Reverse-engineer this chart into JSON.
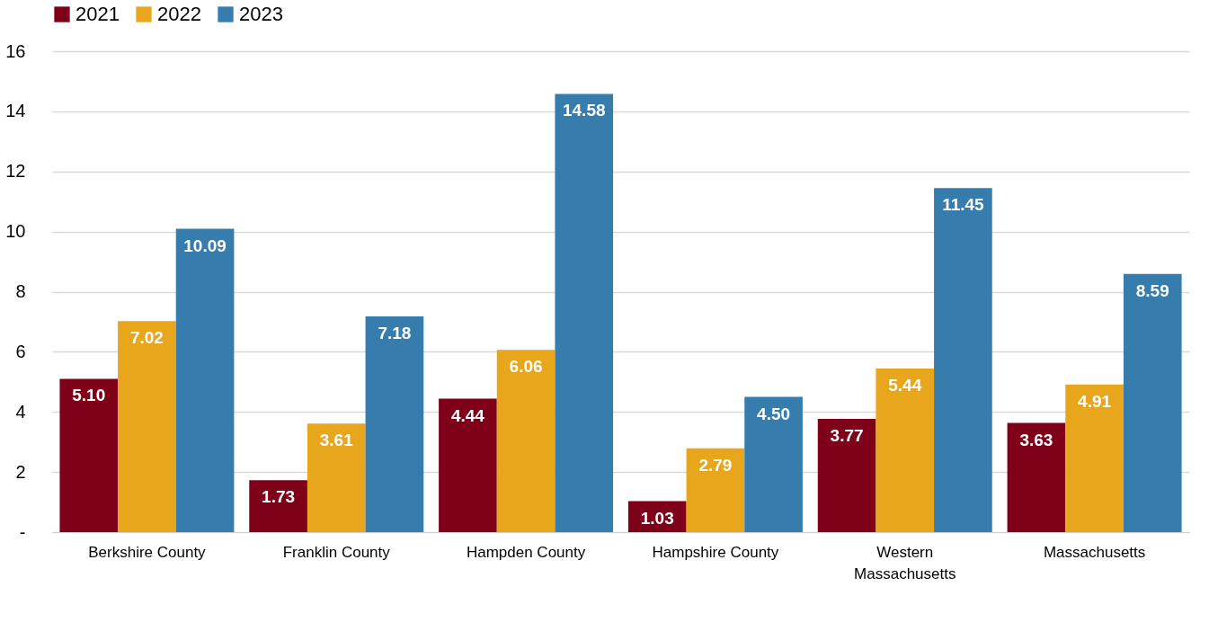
{
  "chart_data": {
    "type": "bar",
    "categories": [
      "Berkshire County",
      "Franklin County",
      "Hampden County",
      "Hampshire County",
      "Western Massachusetts",
      "Massachusetts"
    ],
    "series": [
      {
        "name": "2021",
        "color": "#7f0019",
        "values": [
          5.1,
          1.73,
          4.44,
          1.03,
          3.77,
          3.63
        ],
        "value_labels": [
          "5.10",
          "1.73",
          "4.44",
          "1.03",
          "3.77",
          "3.63"
        ]
      },
      {
        "name": "2022",
        "color": "#e8a61c",
        "values": [
          7.02,
          3.61,
          6.06,
          2.79,
          5.44,
          4.91
        ],
        "value_labels": [
          "7.02",
          "3.61",
          "6.06",
          "2.79",
          "5.44",
          "4.91"
        ]
      },
      {
        "name": "2023",
        "color": "#367cad",
        "values": [
          10.09,
          7.18,
          14.58,
          4.5,
          11.45,
          8.59
        ],
        "value_labels": [
          "10.09",
          "7.18",
          "14.58",
          "4.50",
          "11.45",
          "8.59"
        ]
      }
    ],
    "ylim": [
      0,
      16
    ],
    "yticks": [
      {
        "value": 0,
        "label": "-"
      },
      2,
      4,
      6,
      8,
      10,
      12,
      14,
      16
    ],
    "grid": "y",
    "legend": "top"
  }
}
